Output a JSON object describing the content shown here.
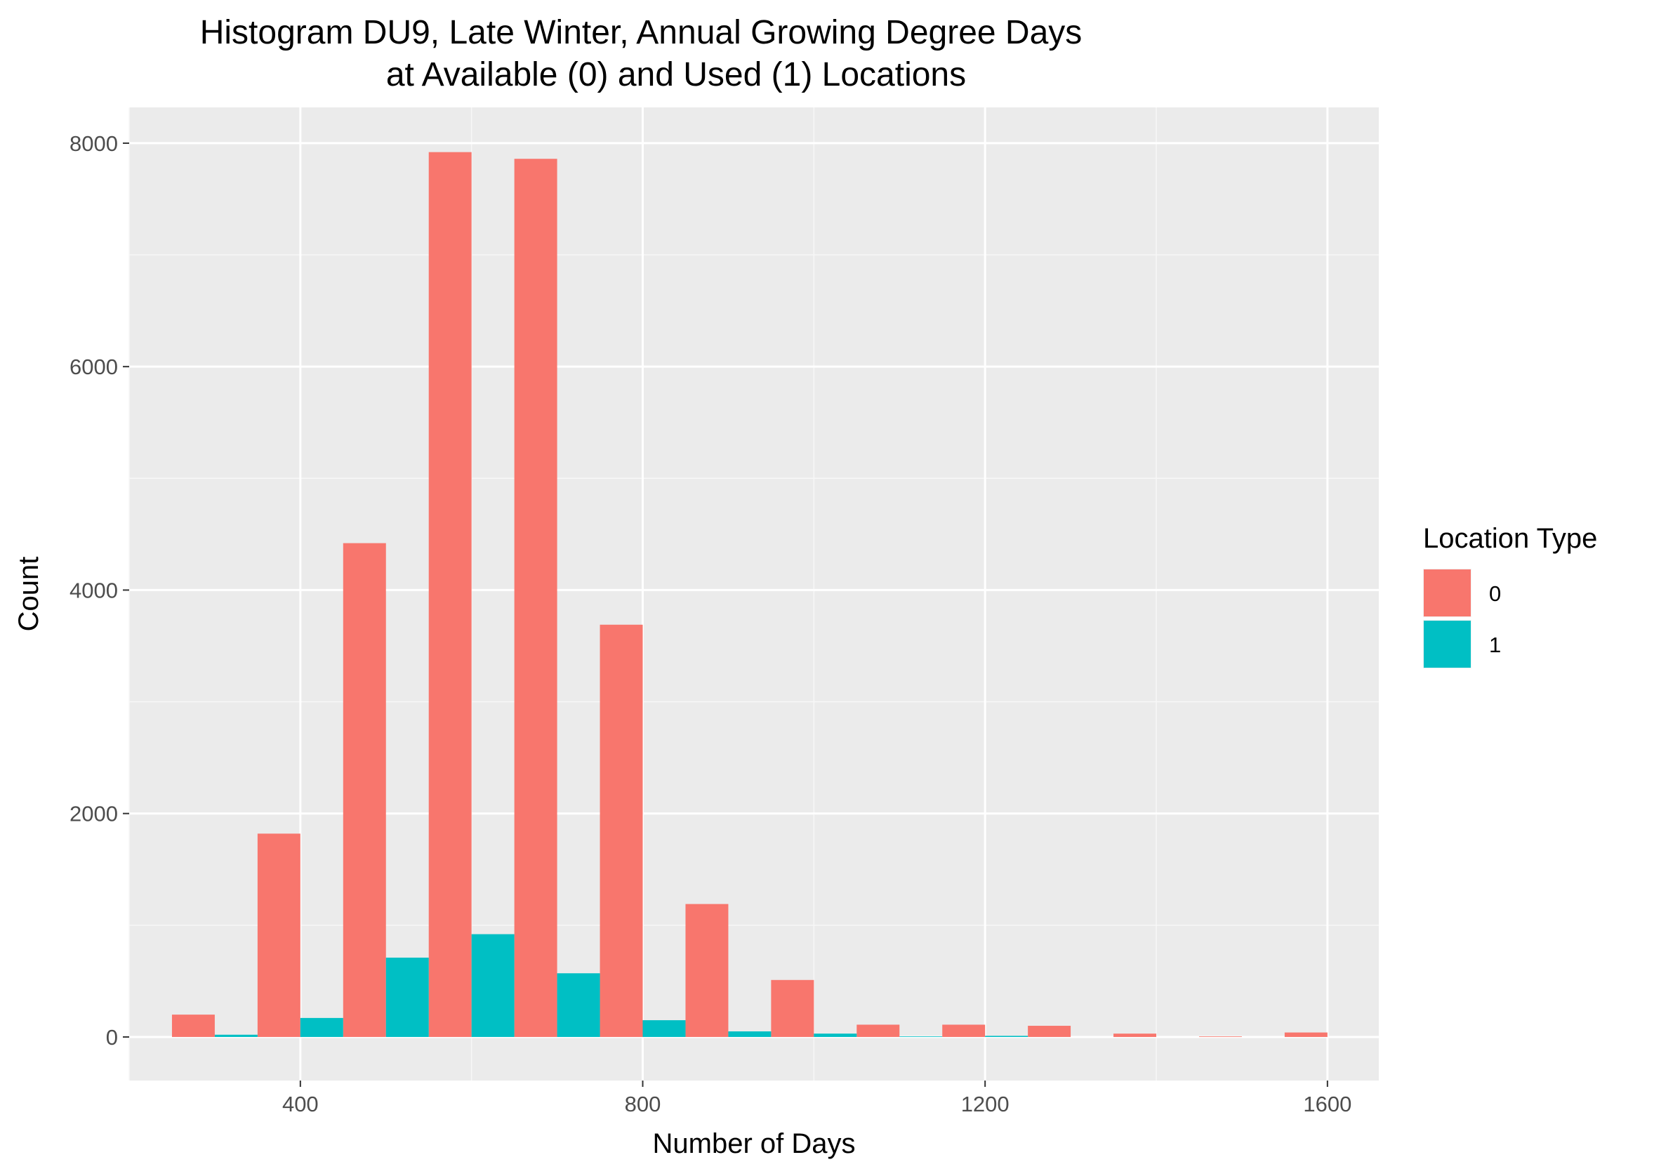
{
  "chart_data": {
    "type": "bar",
    "title_lines": [
      "Histogram DU9, Late Winter, Annual Growing Degree Days",
      "at Available (0) and Used (1) Locations"
    ],
    "xlabel": "Number of Days",
    "ylabel": "Count",
    "xlim": [
      200,
      1660
    ],
    "ylim": [
      -390,
      8320
    ],
    "x_ticks": [
      400,
      800,
      1200,
      1600
    ],
    "x_tick_labels": [
      "400",
      "800",
      "1200",
      "1600"
    ],
    "y_ticks": [
      0,
      2000,
      4000,
      6000,
      8000
    ],
    "y_tick_labels": [
      "0",
      "2000",
      "4000",
      "6000",
      "8000"
    ],
    "bin_width": 100,
    "bin_centers": [
      300,
      400,
      500,
      600,
      700,
      800,
      900,
      1000,
      1100,
      1200,
      1300,
      1400,
      1500,
      1600
    ],
    "grid": true,
    "legend": {
      "title": "Location Type",
      "position": "right"
    },
    "series": [
      {
        "name": "0",
        "color": "#F8766D",
        "values": [
          200,
          1820,
          4420,
          7920,
          7860,
          3690,
          1190,
          510,
          110,
          110,
          100,
          30,
          5,
          40
        ]
      },
      {
        "name": "1",
        "color": "#00BFC4",
        "values": [
          20,
          170,
          710,
          920,
          570,
          150,
          50,
          30,
          5,
          10,
          0,
          0,
          0,
          0
        ]
      }
    ]
  }
}
